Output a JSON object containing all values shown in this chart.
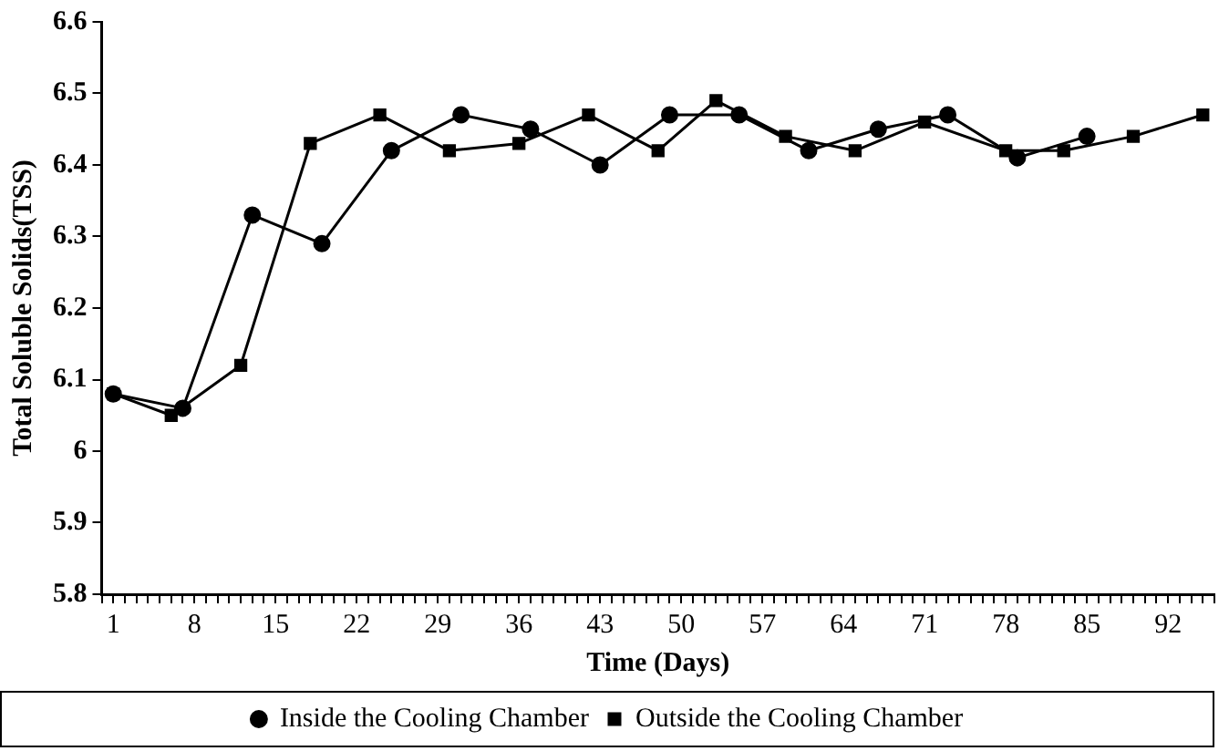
{
  "chart_data": {
    "type": "line",
    "xlabel": "Time (Days)",
    "ylabel": "Total Soluble Solids(TSS)",
    "xlim": [
      0,
      96
    ],
    "ylim": [
      5.8,
      6.6
    ],
    "xticks": [
      {
        "value": 0,
        "label": null
      },
      1,
      {
        "value": 2,
        "label": null
      },
      {
        "value": 3,
        "label": null
      },
      {
        "value": 4,
        "label": null
      },
      {
        "value": 5,
        "label": null
      },
      {
        "value": 6,
        "label": null
      },
      {
        "value": 7,
        "label": null
      },
      8,
      {
        "value": 9,
        "label": null
      },
      {
        "value": 10,
        "label": null
      },
      {
        "value": 11,
        "label": null
      },
      {
        "value": 12,
        "label": null
      },
      {
        "value": 13,
        "label": null
      },
      {
        "value": 14,
        "label": null
      },
      15,
      {
        "value": 16,
        "label": null
      },
      {
        "value": 17,
        "label": null
      },
      {
        "value": 18,
        "label": null
      },
      {
        "value": 19,
        "label": null
      },
      {
        "value": 20,
        "label": null
      },
      {
        "value": 21,
        "label": null
      },
      22,
      {
        "value": 23,
        "label": null
      },
      {
        "value": 24,
        "label": null
      },
      {
        "value": 25,
        "label": null
      },
      {
        "value": 26,
        "label": null
      },
      {
        "value": 27,
        "label": null
      },
      {
        "value": 28,
        "label": null
      },
      29,
      {
        "value": 30,
        "label": null
      },
      {
        "value": 31,
        "label": null
      },
      {
        "value": 32,
        "label": null
      },
      {
        "value": 33,
        "label": null
      },
      {
        "value": 34,
        "label": null
      },
      {
        "value": 35,
        "label": null
      },
      36,
      {
        "value": 37,
        "label": null
      },
      {
        "value": 38,
        "label": null
      },
      {
        "value": 39,
        "label": null
      },
      {
        "value": 40,
        "label": null
      },
      {
        "value": 41,
        "label": null
      },
      {
        "value": 42,
        "label": null
      },
      43,
      {
        "value": 44,
        "label": null
      },
      {
        "value": 45,
        "label": null
      },
      {
        "value": 46,
        "label": null
      },
      {
        "value": 47,
        "label": null
      },
      {
        "value": 48,
        "label": null
      },
      {
        "value": 49,
        "label": null
      },
      50,
      {
        "value": 51,
        "label": null
      },
      {
        "value": 52,
        "label": null
      },
      {
        "value": 53,
        "label": null
      },
      {
        "value": 54,
        "label": null
      },
      {
        "value": 55,
        "label": null
      },
      {
        "value": 56,
        "label": null
      },
      57,
      {
        "value": 58,
        "label": null
      },
      {
        "value": 59,
        "label": null
      },
      {
        "value": 60,
        "label": null
      },
      {
        "value": 61,
        "label": null
      },
      {
        "value": 62,
        "label": null
      },
      {
        "value": 63,
        "label": null
      },
      64,
      {
        "value": 65,
        "label": null
      },
      {
        "value": 66,
        "label": null
      },
      {
        "value": 67,
        "label": null
      },
      {
        "value": 68,
        "label": null
      },
      {
        "value": 69,
        "label": null
      },
      {
        "value": 70,
        "label": null
      },
      71,
      {
        "value": 72,
        "label": null
      },
      {
        "value": 73,
        "label": null
      },
      {
        "value": 74,
        "label": null
      },
      {
        "value": 75,
        "label": null
      },
      {
        "value": 76,
        "label": null
      },
      {
        "value": 77,
        "label": null
      },
      78,
      {
        "value": 79,
        "label": null
      },
      {
        "value": 80,
        "label": null
      },
      {
        "value": 81,
        "label": null
      },
      {
        "value": 82,
        "label": null
      },
      {
        "value": 83,
        "label": null
      },
      {
        "value": 84,
        "label": null
      },
      85,
      {
        "value": 86,
        "label": null
      },
      {
        "value": 87,
        "label": null
      },
      {
        "value": 88,
        "label": null
      },
      {
        "value": 89,
        "label": null
      },
      {
        "value": 90,
        "label": null
      },
      {
        "value": 91,
        "label": null
      },
      92,
      {
        "value": 93,
        "label": null
      },
      {
        "value": 94,
        "label": null
      },
      {
        "value": 95,
        "label": null
      },
      {
        "value": 96,
        "label": null
      }
    ],
    "yticks": [
      5.8,
      5.9,
      6,
      6.1,
      6.2,
      6.3,
      6.4,
      6.5,
      6.6
    ],
    "grid": false,
    "legend": "bottom",
    "line_style": "solid",
    "series": [
      {
        "name": "Inside the Cooling Chamber",
        "color": "#000000",
        "marker": "circle",
        "x": [
          1,
          7,
          13,
          19,
          25,
          31,
          37,
          43,
          49,
          55,
          61,
          67,
          73,
          79,
          85
        ],
        "values": [
          6.08,
          6.06,
          6.33,
          6.29,
          6.42,
          6.47,
          6.45,
          6.4,
          6.47,
          6.47,
          6.42,
          6.45,
          6.47,
          6.41,
          6.44
        ]
      },
      {
        "name": "Outside the Cooling Chamber",
        "color": "#000000",
        "marker": "square",
        "x": [
          1,
          6,
          12,
          18,
          24,
          30,
          36,
          42,
          48,
          53,
          59,
          65,
          71,
          78,
          83,
          89,
          95
        ],
        "values": [
          6.08,
          6.05,
          6.12,
          6.43,
          6.47,
          6.42,
          6.43,
          6.47,
          6.42,
          6.49,
          6.44,
          6.42,
          6.46,
          6.42,
          6.42,
          6.44,
          6.47
        ]
      }
    ]
  }
}
